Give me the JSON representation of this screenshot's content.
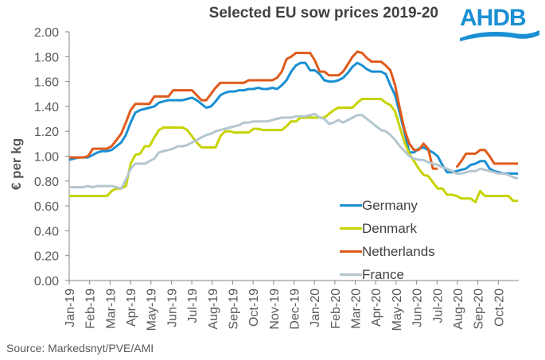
{
  "logo": {
    "text": "AHDB",
    "color": "#1a8fd3"
  },
  "source": "Source: Markedsnyt/PVE/AMI",
  "chart_data": {
    "type": "line",
    "title": "Selected EU sow prices 2019-20",
    "xlabel": "",
    "ylabel": "€ per kg",
    "ylim": [
      0,
      2
    ],
    "yticks": [
      "0.00",
      "0.20",
      "0.40",
      "0.60",
      "0.80",
      "1.00",
      "1.20",
      "1.40",
      "1.60",
      "1.80",
      "2.00"
    ],
    "x_frequency": "weekly",
    "x_start": "Jan-19",
    "xtick_labels": [
      "Jan-19",
      "Feb-19",
      "Mar-19",
      "Apr-19",
      "May-19",
      "Jun-19",
      "Jul-19",
      "Aug-19",
      "Sep-19",
      "Oct-19",
      "Nov-19",
      "Dec-19",
      "Jan-20",
      "Feb-20",
      "Mar-20",
      "Apr-20",
      "May-20",
      "Jun-20",
      "Jul-20",
      "Aug-20",
      "Sep-20",
      "Oct-20"
    ],
    "grid": false,
    "legend_position": "bottom-right",
    "series": [
      {
        "name": "Germany",
        "color": "#1a8fd3",
        "values": [
          0.97,
          0.98,
          0.99,
          0.99,
          0.99,
          1.01,
          1.03,
          1.04,
          1.04,
          1.05,
          1.08,
          1.11,
          1.17,
          1.27,
          1.35,
          1.37,
          1.38,
          1.39,
          1.4,
          1.43,
          1.44,
          1.45,
          1.45,
          1.45,
          1.45,
          1.46,
          1.47,
          1.45,
          1.42,
          1.39,
          1.4,
          1.44,
          1.49,
          1.51,
          1.52,
          1.52,
          1.53,
          1.53,
          1.54,
          1.54,
          1.55,
          1.54,
          1.54,
          1.55,
          1.54,
          1.57,
          1.61,
          1.68,
          1.73,
          1.75,
          1.75,
          1.69,
          1.69,
          1.66,
          1.61,
          1.6,
          1.6,
          1.61,
          1.63,
          1.67,
          1.72,
          1.75,
          1.73,
          1.7,
          1.68,
          1.68,
          1.68,
          1.66,
          1.57,
          1.49,
          1.34,
          1.19,
          1.03,
          1.03,
          1.06,
          1.07,
          1.05,
          1.03,
          1.0,
          0.93,
          0.87,
          0.87,
          0.88,
          0.89,
          0.9,
          0.93,
          0.94,
          0.96,
          0.96,
          0.9,
          0.88,
          0.87,
          0.86,
          0.86,
          0.86,
          0.86
        ]
      },
      {
        "name": "Denmark",
        "color": "#c6d300",
        "values": [
          0.68,
          0.68,
          0.68,
          0.68,
          0.68,
          0.68,
          0.68,
          0.68,
          0.68,
          0.72,
          0.74,
          0.74,
          0.76,
          0.94,
          1.01,
          1.02,
          1.08,
          1.08,
          1.15,
          1.21,
          1.23,
          1.23,
          1.23,
          1.23,
          1.23,
          1.21,
          1.16,
          1.11,
          1.07,
          1.07,
          1.07,
          1.07,
          1.16,
          1.2,
          1.2,
          1.19,
          1.19,
          1.19,
          1.19,
          1.22,
          1.22,
          1.21,
          1.21,
          1.21,
          1.21,
          1.21,
          1.24,
          1.28,
          1.28,
          1.31,
          1.31,
          1.31,
          1.31,
          1.31,
          1.31,
          1.34,
          1.37,
          1.39,
          1.39,
          1.39,
          1.39,
          1.43,
          1.46,
          1.46,
          1.46,
          1.46,
          1.46,
          1.43,
          1.41,
          1.36,
          1.23,
          1.11,
          1.02,
          0.96,
          0.9,
          0.85,
          0.84,
          0.79,
          0.74,
          0.74,
          0.69,
          0.69,
          0.68,
          0.66,
          0.66,
          0.66,
          0.63,
          0.72,
          0.68,
          0.68,
          0.68,
          0.68,
          0.68,
          0.68,
          0.64,
          0.64
        ]
      },
      {
        "name": "Netherlands",
        "color": "#e05a1b",
        "values": [
          0.99,
          0.99,
          0.99,
          0.99,
          1.0,
          1.06,
          1.06,
          1.06,
          1.06,
          1.08,
          1.13,
          1.18,
          1.27,
          1.37,
          1.42,
          1.42,
          1.42,
          1.42,
          1.48,
          1.48,
          1.48,
          1.48,
          1.53,
          1.53,
          1.53,
          1.53,
          1.53,
          1.49,
          1.45,
          1.45,
          1.5,
          1.55,
          1.59,
          1.59,
          1.59,
          1.59,
          1.59,
          1.59,
          1.61,
          1.61,
          1.61,
          1.61,
          1.61,
          1.61,
          1.63,
          1.68,
          1.78,
          1.8,
          1.83,
          1.83,
          1.83,
          1.83,
          1.77,
          1.68,
          1.68,
          1.65,
          1.65,
          1.65,
          1.68,
          1.74,
          1.8,
          1.84,
          1.83,
          1.79,
          1.76,
          1.76,
          1.76,
          1.73,
          1.69,
          1.57,
          1.38,
          1.21,
          1.1,
          1.05,
          1.05,
          1.1,
          1.06,
          0.9,
          0.9,
          null,
          null,
          null,
          0.91,
          0.96,
          1.02,
          1.02,
          1.02,
          1.05,
          1.05,
          1.0,
          0.94,
          0.94,
          0.94,
          0.94,
          0.94,
          0.94
        ]
      },
      {
        "name": "France",
        "color": "#b4c6cf",
        "values": [
          0.75,
          0.75,
          0.75,
          0.75,
          0.76,
          0.75,
          0.76,
          0.76,
          0.76,
          0.76,
          0.75,
          0.74,
          0.81,
          0.9,
          0.94,
          0.94,
          0.94,
          0.96,
          0.98,
          1.03,
          1.04,
          1.05,
          1.06,
          1.08,
          1.08,
          1.09,
          1.11,
          1.13,
          1.15,
          1.17,
          1.18,
          1.2,
          1.21,
          1.22,
          1.23,
          1.24,
          1.25,
          1.27,
          1.27,
          1.28,
          1.28,
          1.28,
          1.28,
          1.29,
          1.3,
          1.31,
          1.31,
          1.31,
          1.32,
          1.32,
          1.32,
          1.33,
          1.34,
          1.31,
          1.3,
          1.26,
          1.27,
          1.29,
          1.27,
          1.29,
          1.31,
          1.33,
          1.33,
          1.3,
          1.27,
          1.24,
          1.21,
          1.2,
          1.17,
          1.13,
          1.08,
          1.04,
          1.0,
          0.98,
          0.97,
          0.97,
          0.95,
          0.94,
          0.93,
          0.91,
          0.9,
          0.88,
          0.86,
          0.86,
          0.87,
          0.88,
          0.88,
          0.9,
          0.89,
          0.88,
          0.87,
          0.86,
          0.86,
          0.85,
          0.83,
          0.82
        ]
      }
    ]
  }
}
